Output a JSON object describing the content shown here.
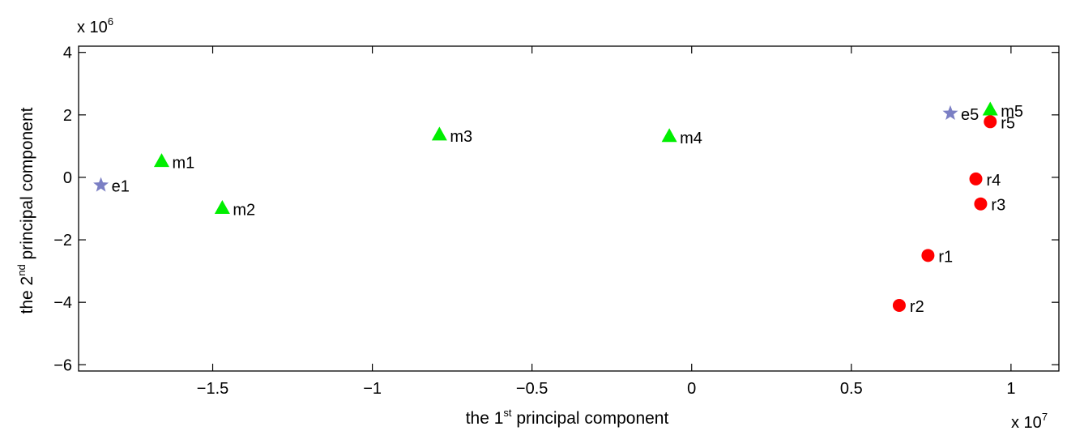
{
  "chart_data": {
    "type": "scatter",
    "title": "",
    "xlabel": {
      "prefix": "the 1",
      "sup": "st",
      "suffix": " principal component"
    },
    "ylabel": {
      "prefix": "the 2",
      "sup": "nd",
      "suffix": " principal component"
    },
    "x_multiplier": {
      "base": "x 10",
      "exp": "7"
    },
    "y_multiplier": {
      "base": "x 10",
      "exp": "6"
    },
    "xlim": [
      -1.92,
      1.15
    ],
    "ylim": [
      -6.2,
      4.2
    ],
    "x_ticks": [
      -1.5,
      -1,
      -0.5,
      0,
      0.5,
      1
    ],
    "x_tick_labels": [
      "−1.5",
      "−1",
      "−0.5",
      "0",
      "0.5",
      "1"
    ],
    "y_ticks": [
      -6,
      -4,
      -2,
      0,
      2,
      4
    ],
    "y_tick_labels": [
      "−6",
      "−4",
      "−2",
      "0",
      "2",
      "4"
    ],
    "grid": false,
    "box": true,
    "series": [
      {
        "marker": "star",
        "color": "#7b7fc4",
        "points": [
          {
            "label": "e1",
            "x": -1.85,
            "y": -0.25
          },
          {
            "label": "e5",
            "x": 0.81,
            "y": 2.05
          }
        ]
      },
      {
        "marker": "triangle",
        "color": "#00ee00",
        "points": [
          {
            "label": "m1",
            "x": -1.66,
            "y": 0.5
          },
          {
            "label": "m2",
            "x": -1.47,
            "y": -1.0
          },
          {
            "label": "m3",
            "x": -0.79,
            "y": 1.35
          },
          {
            "label": "m4",
            "x": -0.07,
            "y": 1.3
          },
          {
            "label": "m5",
            "x": 0.935,
            "y": 2.15
          }
        ]
      },
      {
        "marker": "circle",
        "color": "#ff0000",
        "points": [
          {
            "label": "r1",
            "x": 0.74,
            "y": -2.5
          },
          {
            "label": "r2",
            "x": 0.65,
            "y": -4.1
          },
          {
            "label": "r3",
            "x": 0.905,
            "y": -0.85
          },
          {
            "label": "r4",
            "x": 0.89,
            "y": -0.05
          },
          {
            "label": "r5",
            "x": 0.935,
            "y": 1.78
          }
        ]
      }
    ]
  }
}
